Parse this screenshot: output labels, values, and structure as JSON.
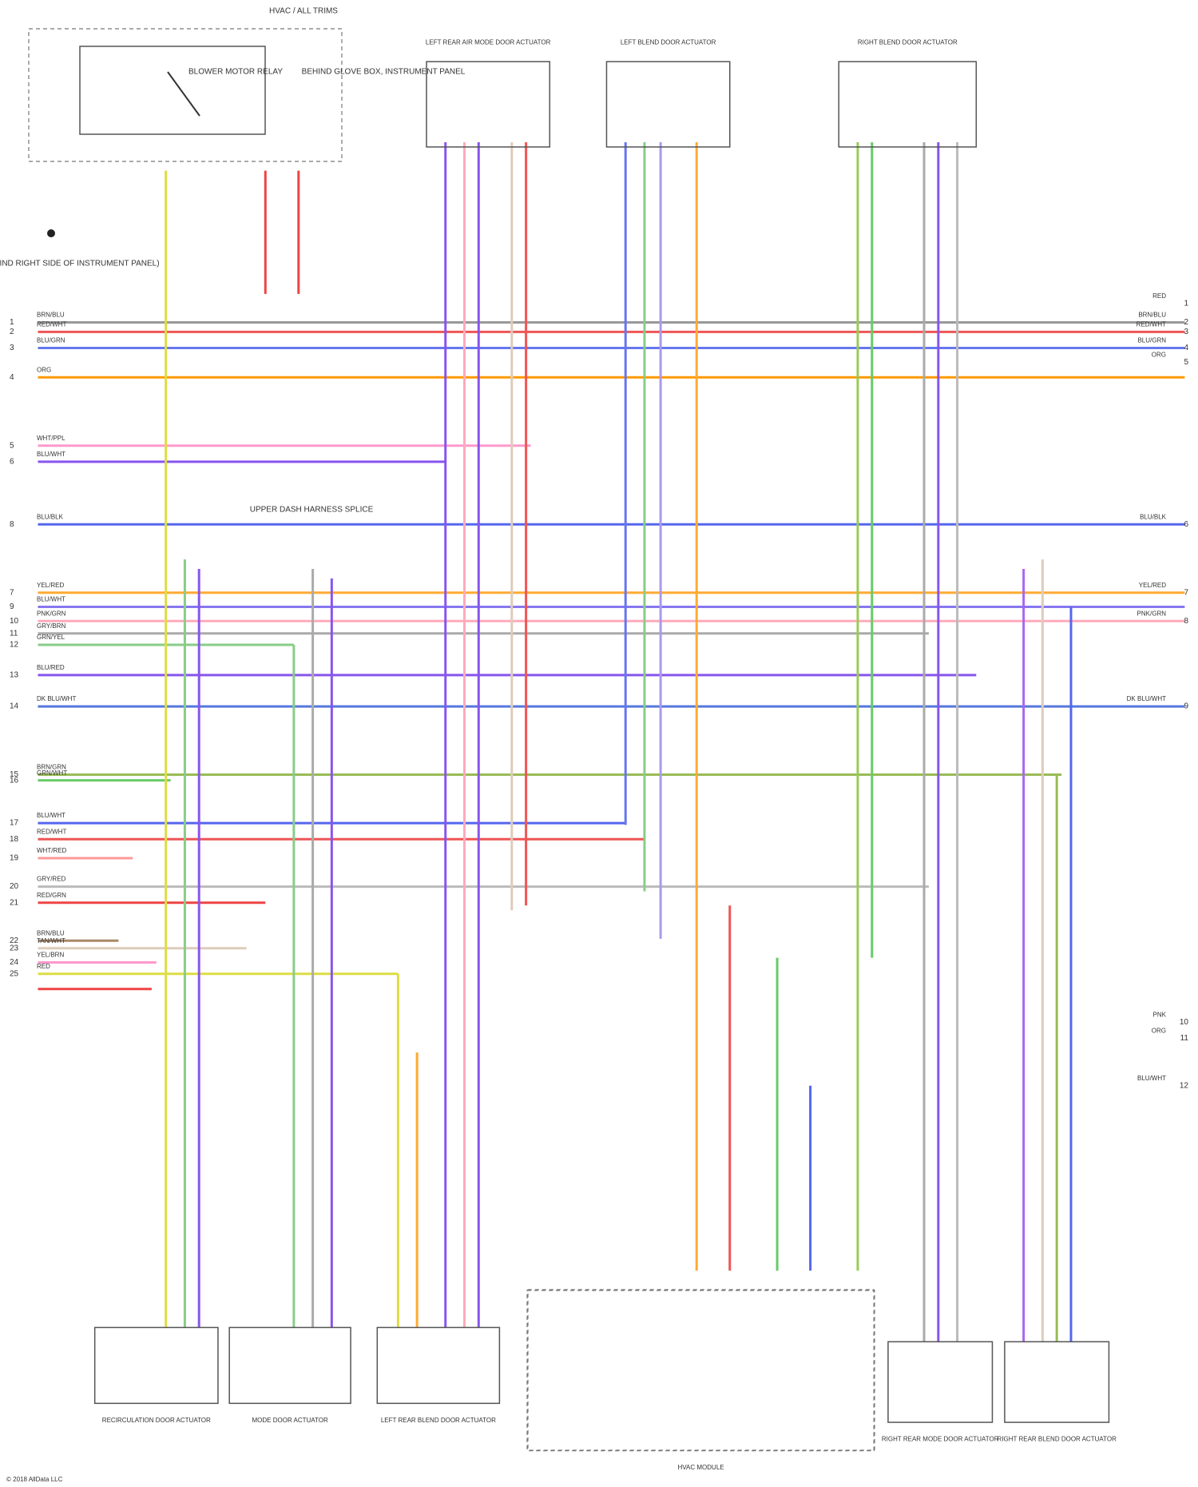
{
  "header": {
    "title": "HVAC / ALL TRIMS",
    "copyright": "© 2018 AllData LLC"
  },
  "components": {
    "relay": "BLOWER MOTOR RELAY",
    "top_note": "BEHIND GLOVE BOX, INSTRUMENT PANEL",
    "ground": "GROUND (BEHIND RIGHT SIDE OF INSTRUMENT PANEL)",
    "top_actuators": [
      "LEFT REAR AIR MODE DOOR ACTUATOR",
      "LEFT BLEND DOOR ACTUATOR",
      "RIGHT BLEND DOOR ACTUATOR"
    ],
    "bottom_actuators": [
      "RECIRCULATION DOOR ACTUATOR",
      "MODE DOOR ACTUATOR",
      "LEFT REAR BLEND DOOR ACTUATOR",
      "HVAC MODULE",
      "RIGHT REAR MODE DOOR ACTUATOR",
      "RIGHT REAR BLEND DOOR ACTUATOR"
    ],
    "splice": "UPPER DASH HARNESS SPLICE"
  },
  "left_wires": [
    {
      "pin": "1",
      "label": "BRN/BLU"
    },
    {
      "pin": "2",
      "label": "RED/WHT"
    },
    {
      "pin": "3",
      "label": "BLU/GRN"
    },
    {
      "pin": "4",
      "label": "ORG"
    },
    {
      "pin": "5",
      "label": "WHT/PPL"
    },
    {
      "pin": "6",
      "label": "BLU/WHT"
    },
    {
      "pin": "8",
      "label": "BLU/BLK"
    },
    {
      "pin": "7",
      "label": "YEL/RED"
    },
    {
      "pin": "9",
      "label": "BLU/WHT"
    },
    {
      "pin": "10",
      "label": "PNK/GRN"
    },
    {
      "pin": "11",
      "label": "GRY/BRN"
    },
    {
      "pin": "12",
      "label": "GRN/YEL"
    },
    {
      "pin": "13",
      "label": "BLU/RED"
    },
    {
      "pin": "14",
      "label": "DK BLU/WHT"
    },
    {
      "pin": "15",
      "label": "BRN/GRN"
    },
    {
      "pin": "16",
      "label": "GRN/WHT"
    },
    {
      "pin": "17",
      "label": "BLU/WHT"
    },
    {
      "pin": "18",
      "label": "RED/WHT"
    },
    {
      "pin": "19",
      "label": "WHT/RED"
    },
    {
      "pin": "20",
      "label": "GRY/RED"
    },
    {
      "pin": "21",
      "label": "RED/GRN"
    },
    {
      "pin": "22",
      "label": "BRN/BLU"
    },
    {
      "pin": "23",
      "label": "TAN/WHT"
    },
    {
      "pin": "24",
      "label": "YEL/BRN"
    },
    {
      "pin": "25",
      "label": "RED"
    }
  ],
  "right_wires": [
    {
      "pin": "1",
      "label": "RED"
    },
    {
      "pin": "2",
      "label": "BRN/BLU"
    },
    {
      "pin": "3",
      "label": "RED/WHT"
    },
    {
      "pin": "4",
      "label": "BLU/GRN"
    },
    {
      "pin": "5",
      "label": "ORG"
    },
    {
      "pin": "6",
      "label": "BLU/BLK"
    },
    {
      "pin": "7",
      "label": "YEL/RED"
    },
    {
      "pin": "8",
      "label": "PNK/GRN"
    },
    {
      "pin": "9",
      "label": "DK BLU/WHT"
    },
    {
      "pin": "10",
      "label": "PNK"
    },
    {
      "pin": "11",
      "label": "ORG"
    },
    {
      "pin": "12",
      "label": "BLU/WHT"
    }
  ]
}
